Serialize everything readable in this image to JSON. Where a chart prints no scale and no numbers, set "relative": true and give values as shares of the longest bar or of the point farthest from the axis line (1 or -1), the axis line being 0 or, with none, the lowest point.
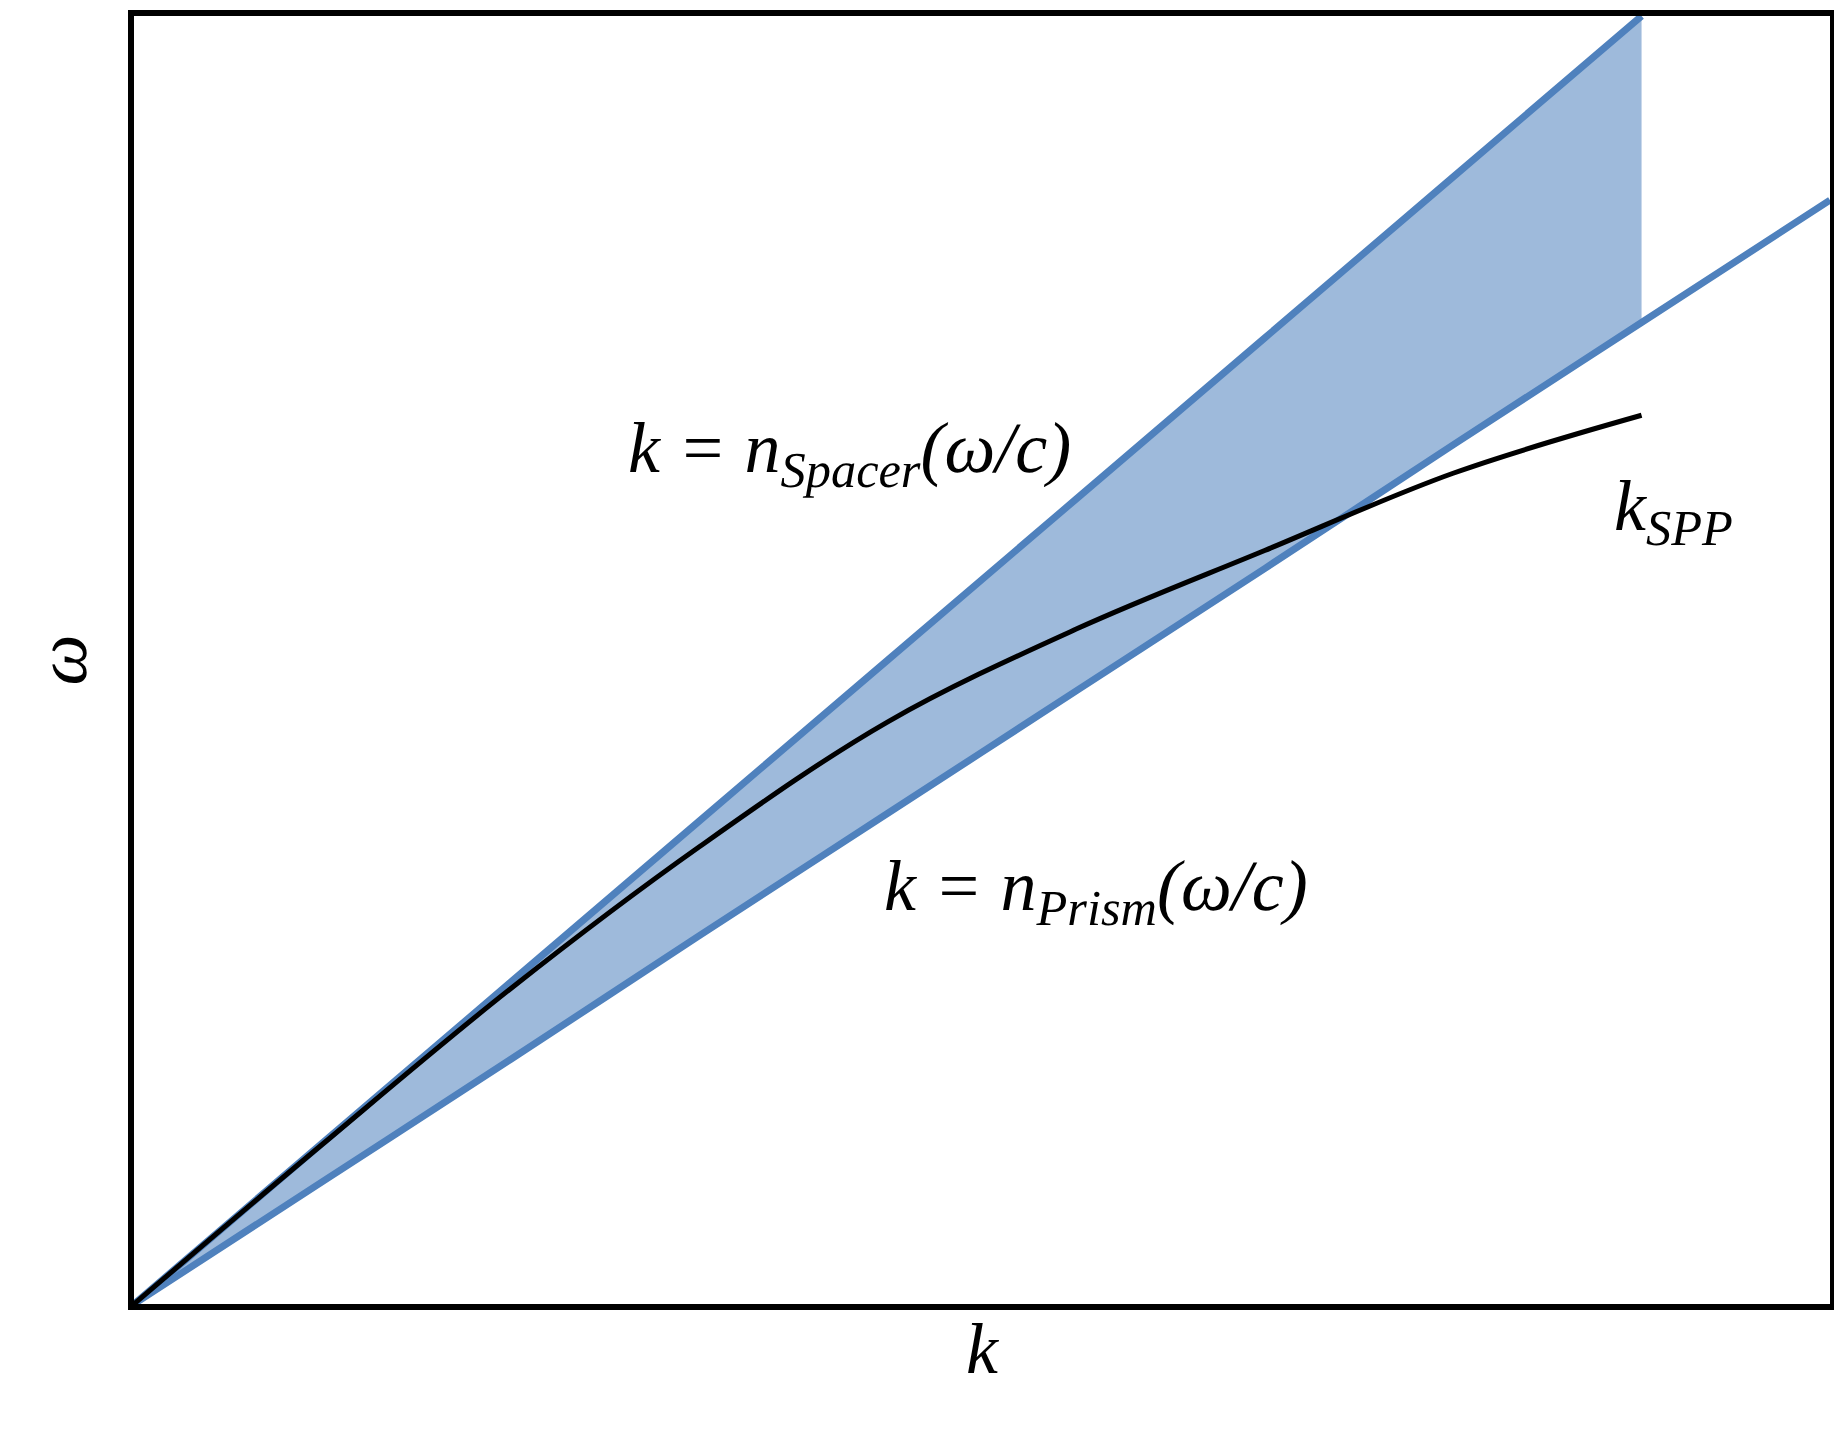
{
  "chart_data": {
    "type": "line",
    "relative": true,
    "xlabel": "k",
    "ylabel": "ω",
    "categories": [
      null,
      null,
      null,
      null,
      null,
      null,
      null,
      null,
      null,
      null
    ],
    "series": [
      {
        "name": "k = n$_{Spacer}$(ω/c)",
        "color": "#4f81bd",
        "values": [
          0,
          0.125,
          0.25,
          0.375,
          0.5,
          0.625,
          0.75,
          0.875,
          1,
          null
        ],
        "lower": [
          0,
          0.095,
          0.19,
          0.286,
          0.381,
          0.476,
          0.571,
          0.667,
          0.762,
          null
        ],
        "upper": [
          0,
          0.125,
          0.25,
          0.375,
          0.5,
          0.625,
          0.75,
          0.875,
          1,
          null
        ]
      },
      {
        "name": "k = n$_{Prism}$(ω/c)",
        "color": "#4f81bd",
        "values": [
          0,
          0.095,
          0.19,
          0.286,
          0.381,
          0.476,
          0.571,
          0.667,
          0.762,
          0.857
        ]
      },
      {
        "name": "k$_{SPP}$",
        "color": "#000000",
        "values": [
          0,
          0.124,
          0.245,
          0.355,
          0.452,
          0.524,
          0.585,
          0.645,
          0.69,
          null
        ]
      }
    ],
    "legend": false,
    "marker": "none",
    "line_style": "solid"
  }
}
